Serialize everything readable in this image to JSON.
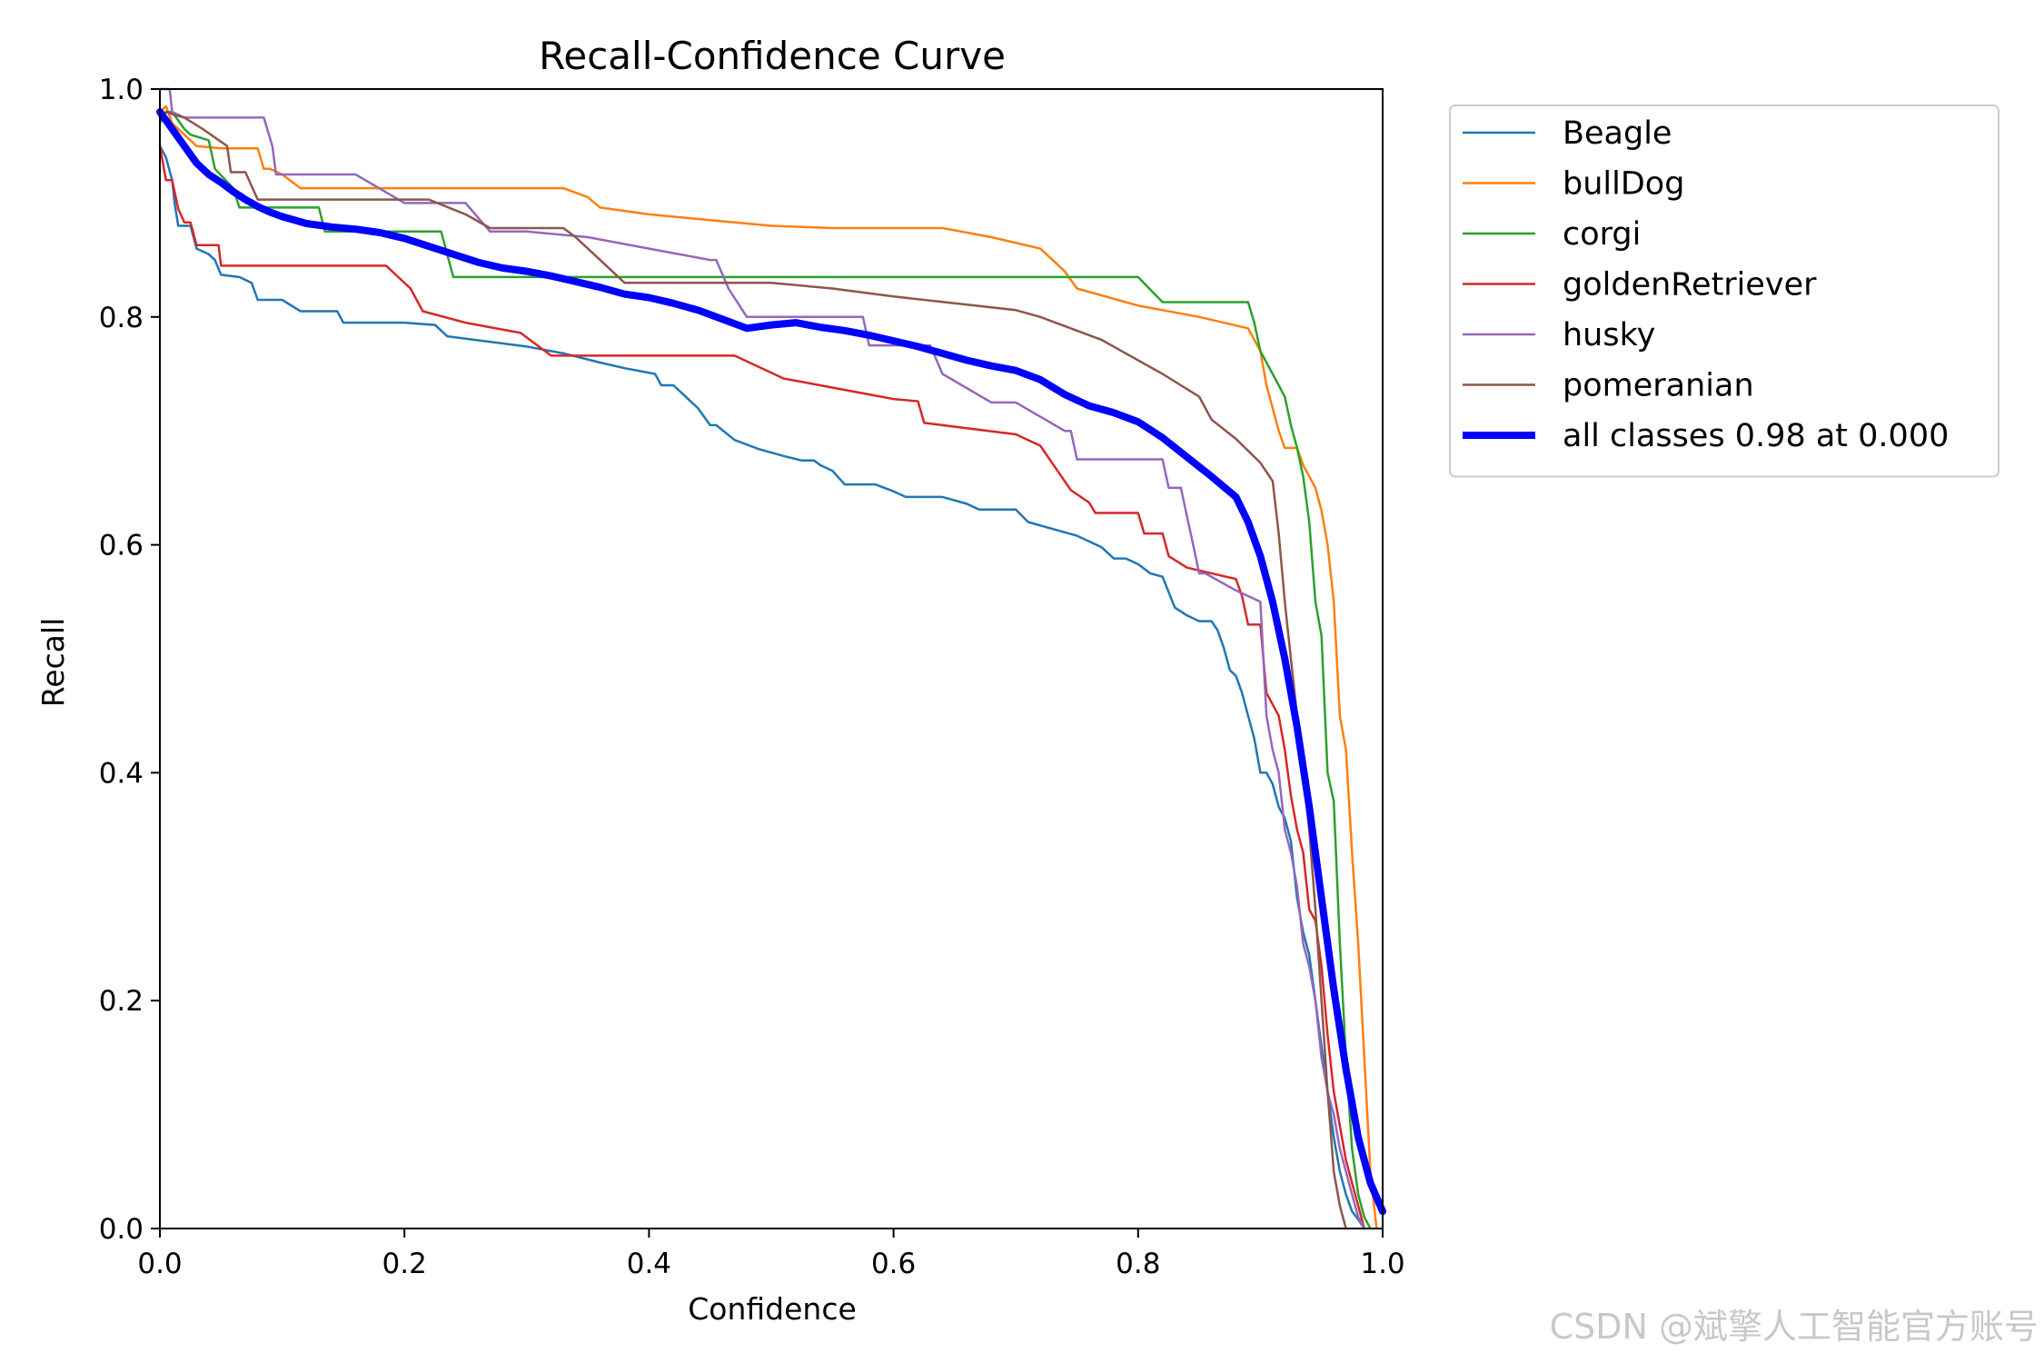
{
  "watermark": "CSDN @斌擎人工智能官方账号",
  "chart_data": {
    "type": "line",
    "title": "Recall-Confidence Curve",
    "xlabel": "Confidence",
    "ylabel": "Recall",
    "xlim": [
      0.0,
      1.0
    ],
    "ylim": [
      0.0,
      1.0
    ],
    "xticks": [
      "0.0",
      "0.2",
      "0.4",
      "0.6",
      "0.8",
      "1.0"
    ],
    "yticks": [
      "0.0",
      "0.2",
      "0.4",
      "0.6",
      "0.8",
      "1.0"
    ],
    "grid": false,
    "legend_position": "outside-top-right",
    "series": [
      {
        "name": "Beagle",
        "color": "#1f77b4",
        "x": [
          0.0,
          0.005,
          0.01,
          0.012,
          0.015,
          0.025,
          0.03,
          0.04,
          0.045,
          0.05,
          0.065,
          0.075,
          0.08,
          0.1,
          0.115,
          0.145,
          0.15,
          0.195,
          0.2,
          0.225,
          0.235,
          0.3,
          0.33,
          0.36,
          0.38,
          0.405,
          0.41,
          0.42,
          0.43,
          0.44,
          0.45,
          0.455,
          0.47,
          0.49,
          0.51,
          0.525,
          0.535,
          0.54,
          0.55,
          0.56,
          0.585,
          0.6,
          0.61,
          0.62,
          0.64,
          0.66,
          0.67,
          0.7,
          0.71,
          0.75,
          0.77,
          0.78,
          0.79,
          0.8,
          0.81,
          0.82,
          0.83,
          0.84,
          0.85,
          0.86,
          0.865,
          0.87,
          0.875,
          0.88,
          0.885,
          0.89,
          0.895,
          0.9,
          0.905,
          0.91,
          0.915,
          0.92,
          0.925,
          0.93,
          0.935,
          0.94,
          0.945,
          0.95,
          0.955,
          0.96,
          0.965,
          0.97,
          0.975,
          0.98,
          0.985
        ],
        "y": [
          0.95,
          0.94,
          0.92,
          0.9,
          0.88,
          0.88,
          0.86,
          0.855,
          0.85,
          0.837,
          0.835,
          0.83,
          0.815,
          0.815,
          0.805,
          0.805,
          0.795,
          0.795,
          0.795,
          0.793,
          0.783,
          0.774,
          0.768,
          0.76,
          0.755,
          0.75,
          0.74,
          0.74,
          0.73,
          0.72,
          0.705,
          0.705,
          0.692,
          0.684,
          0.678,
          0.674,
          0.674,
          0.67,
          0.665,
          0.653,
          0.653,
          0.647,
          0.642,
          0.642,
          0.642,
          0.636,
          0.631,
          0.631,
          0.62,
          0.608,
          0.598,
          0.588,
          0.588,
          0.583,
          0.575,
          0.572,
          0.545,
          0.538,
          0.533,
          0.533,
          0.525,
          0.51,
          0.49,
          0.485,
          0.47,
          0.45,
          0.43,
          0.4,
          0.4,
          0.39,
          0.37,
          0.36,
          0.34,
          0.29,
          0.26,
          0.24,
          0.2,
          0.16,
          0.12,
          0.08,
          0.05,
          0.03,
          0.015,
          0.008,
          0.0
        ]
      },
      {
        "name": "bullDog",
        "color": "#ff7f0e",
        "x": [
          0.0,
          0.005,
          0.01,
          0.02,
          0.03,
          0.05,
          0.06,
          0.08,
          0.085,
          0.09,
          0.1,
          0.115,
          0.12,
          0.15,
          0.2,
          0.25,
          0.3,
          0.33,
          0.35,
          0.36,
          0.4,
          0.45,
          0.5,
          0.55,
          0.6,
          0.64,
          0.68,
          0.72,
          0.73,
          0.74,
          0.75,
          0.8,
          0.85,
          0.89,
          0.9,
          0.905,
          0.91,
          0.915,
          0.92,
          0.93,
          0.935,
          0.945,
          0.95,
          0.955,
          0.96,
          0.965,
          0.97,
          0.975,
          0.98,
          0.985,
          0.99,
          0.995
        ],
        "y": [
          0.98,
          0.985,
          0.97,
          0.96,
          0.95,
          0.948,
          0.948,
          0.948,
          0.93,
          0.93,
          0.925,
          0.913,
          0.913,
          0.913,
          0.913,
          0.913,
          0.913,
          0.913,
          0.905,
          0.896,
          0.89,
          0.885,
          0.88,
          0.878,
          0.878,
          0.878,
          0.87,
          0.86,
          0.85,
          0.84,
          0.825,
          0.81,
          0.8,
          0.79,
          0.77,
          0.74,
          0.72,
          0.7,
          0.685,
          0.685,
          0.67,
          0.65,
          0.63,
          0.6,
          0.55,
          0.45,
          0.42,
          0.33,
          0.25,
          0.15,
          0.05,
          0.0
        ]
      },
      {
        "name": "corgi",
        "color": "#2ca02c",
        "x": [
          0.0,
          0.005,
          0.01,
          0.02,
          0.025,
          0.04,
          0.045,
          0.06,
          0.065,
          0.1,
          0.13,
          0.135,
          0.2,
          0.23,
          0.24,
          0.3,
          0.4,
          0.5,
          0.6,
          0.7,
          0.8,
          0.82,
          0.85,
          0.89,
          0.895,
          0.9,
          0.91,
          0.92,
          0.925,
          0.93,
          0.935,
          0.94,
          0.945,
          0.95,
          0.955,
          0.96,
          0.965,
          0.97,
          0.975,
          0.98,
          0.985,
          0.99
        ],
        "y": [
          0.97,
          0.98,
          0.98,
          0.965,
          0.96,
          0.955,
          0.93,
          0.913,
          0.896,
          0.896,
          0.896,
          0.875,
          0.875,
          0.875,
          0.835,
          0.835,
          0.835,
          0.835,
          0.835,
          0.835,
          0.835,
          0.813,
          0.813,
          0.813,
          0.795,
          0.77,
          0.75,
          0.73,
          0.705,
          0.685,
          0.66,
          0.62,
          0.55,
          0.52,
          0.4,
          0.375,
          0.25,
          0.15,
          0.07,
          0.03,
          0.01,
          0.0
        ]
      },
      {
        "name": "goldenRetriever",
        "color": "#d62728",
        "x": [
          0.0,
          0.005,
          0.01,
          0.015,
          0.02,
          0.025,
          0.03,
          0.048,
          0.05,
          0.06,
          0.1,
          0.15,
          0.185,
          0.205,
          0.215,
          0.25,
          0.295,
          0.32,
          0.33,
          0.4,
          0.47,
          0.51,
          0.6,
          0.62,
          0.625,
          0.7,
          0.72,
          0.745,
          0.76,
          0.765,
          0.8,
          0.805,
          0.82,
          0.825,
          0.84,
          0.88,
          0.885,
          0.89,
          0.9,
          0.905,
          0.91,
          0.915,
          0.92,
          0.925,
          0.93,
          0.935,
          0.94,
          0.945,
          0.95,
          0.955,
          0.96,
          0.965,
          0.97,
          0.975,
          0.98,
          0.985
        ],
        "y": [
          0.95,
          0.92,
          0.92,
          0.895,
          0.883,
          0.883,
          0.863,
          0.863,
          0.845,
          0.845,
          0.845,
          0.845,
          0.845,
          0.825,
          0.805,
          0.795,
          0.786,
          0.766,
          0.766,
          0.766,
          0.766,
          0.746,
          0.728,
          0.726,
          0.707,
          0.697,
          0.687,
          0.648,
          0.637,
          0.628,
          0.628,
          0.61,
          0.61,
          0.59,
          0.58,
          0.57,
          0.555,
          0.53,
          0.53,
          0.47,
          0.46,
          0.45,
          0.42,
          0.38,
          0.35,
          0.33,
          0.28,
          0.27,
          0.23,
          0.17,
          0.12,
          0.09,
          0.06,
          0.04,
          0.02,
          0.0
        ]
      },
      {
        "name": "husky",
        "color": "#9467bd",
        "x": [
          0.0,
          0.005,
          0.008,
          0.01,
          0.02,
          0.03,
          0.05,
          0.07,
          0.085,
          0.092,
          0.095,
          0.1,
          0.11,
          0.12,
          0.16,
          0.2,
          0.22,
          0.25,
          0.27,
          0.3,
          0.35,
          0.4,
          0.45,
          0.455,
          0.465,
          0.48,
          0.5,
          0.54,
          0.575,
          0.58,
          0.6,
          0.63,
          0.64,
          0.68,
          0.7,
          0.74,
          0.745,
          0.75,
          0.8,
          0.82,
          0.825,
          0.835,
          0.84,
          0.845,
          0.85,
          0.855,
          0.88,
          0.9,
          0.905,
          0.91,
          0.915,
          0.92,
          0.925,
          0.93,
          0.935,
          0.94,
          0.945,
          0.95,
          0.955,
          0.96,
          0.965,
          0.97,
          0.975,
          0.98,
          0.985
        ],
        "y": [
          1.0,
          1.0,
          1.0,
          0.98,
          0.975,
          0.975,
          0.975,
          0.975,
          0.975,
          0.95,
          0.925,
          0.925,
          0.925,
          0.925,
          0.925,
          0.9,
          0.9,
          0.9,
          0.875,
          0.875,
          0.87,
          0.86,
          0.85,
          0.85,
          0.825,
          0.8,
          0.8,
          0.8,
          0.8,
          0.775,
          0.775,
          0.775,
          0.75,
          0.725,
          0.725,
          0.7,
          0.7,
          0.675,
          0.675,
          0.675,
          0.65,
          0.65,
          0.625,
          0.6,
          0.575,
          0.575,
          0.56,
          0.55,
          0.45,
          0.42,
          0.4,
          0.35,
          0.33,
          0.3,
          0.25,
          0.23,
          0.2,
          0.15,
          0.12,
          0.1,
          0.07,
          0.05,
          0.03,
          0.01,
          0.0
        ]
      },
      {
        "name": "pomeranian",
        "color": "#8c564b",
        "x": [
          0.0,
          0.005,
          0.01,
          0.02,
          0.035,
          0.055,
          0.058,
          0.07,
          0.075,
          0.08,
          0.1,
          0.15,
          0.2,
          0.22,
          0.25,
          0.27,
          0.3,
          0.33,
          0.34,
          0.36,
          0.38,
          0.39,
          0.4,
          0.45,
          0.5,
          0.55,
          0.6,
          0.65,
          0.7,
          0.72,
          0.77,
          0.82,
          0.85,
          0.86,
          0.88,
          0.9,
          0.91,
          0.915,
          0.92,
          0.925,
          0.93,
          0.935,
          0.94,
          0.945,
          0.95,
          0.955,
          0.96,
          0.965,
          0.97
        ],
        "y": [
          0.975,
          0.98,
          0.978,
          0.975,
          0.965,
          0.95,
          0.927,
          0.927,
          0.915,
          0.903,
          0.903,
          0.903,
          0.903,
          0.903,
          0.89,
          0.878,
          0.878,
          0.878,
          0.87,
          0.85,
          0.83,
          0.83,
          0.83,
          0.83,
          0.83,
          0.825,
          0.818,
          0.812,
          0.806,
          0.8,
          0.78,
          0.75,
          0.73,
          0.71,
          0.693,
          0.672,
          0.656,
          0.61,
          0.55,
          0.5,
          0.45,
          0.4,
          0.35,
          0.28,
          0.2,
          0.12,
          0.05,
          0.02,
          0.0
        ]
      },
      {
        "name": "all classes 0.98 at 0.000",
        "color": "#0000ff",
        "thick": true,
        "x": [
          0.0,
          0.01,
          0.02,
          0.03,
          0.04,
          0.05,
          0.06,
          0.07,
          0.08,
          0.09,
          0.1,
          0.12,
          0.14,
          0.16,
          0.18,
          0.2,
          0.22,
          0.24,
          0.26,
          0.28,
          0.3,
          0.32,
          0.34,
          0.36,
          0.38,
          0.4,
          0.42,
          0.44,
          0.46,
          0.48,
          0.5,
          0.52,
          0.54,
          0.56,
          0.58,
          0.6,
          0.62,
          0.64,
          0.66,
          0.68,
          0.7,
          0.72,
          0.74,
          0.76,
          0.78,
          0.8,
          0.82,
          0.84,
          0.86,
          0.88,
          0.89,
          0.9,
          0.91,
          0.92,
          0.93,
          0.94,
          0.95,
          0.96,
          0.97,
          0.98,
          0.99,
          1.0
        ],
        "y": [
          0.98,
          0.965,
          0.95,
          0.935,
          0.925,
          0.918,
          0.91,
          0.903,
          0.897,
          0.892,
          0.888,
          0.882,
          0.879,
          0.877,
          0.874,
          0.869,
          0.862,
          0.855,
          0.848,
          0.843,
          0.84,
          0.836,
          0.831,
          0.826,
          0.82,
          0.817,
          0.812,
          0.806,
          0.798,
          0.79,
          0.793,
          0.795,
          0.791,
          0.788,
          0.784,
          0.779,
          0.774,
          0.768,
          0.762,
          0.757,
          0.753,
          0.745,
          0.732,
          0.722,
          0.716,
          0.708,
          0.694,
          0.677,
          0.66,
          0.642,
          0.62,
          0.59,
          0.55,
          0.5,
          0.44,
          0.37,
          0.29,
          0.21,
          0.14,
          0.08,
          0.04,
          0.015
        ]
      }
    ]
  }
}
